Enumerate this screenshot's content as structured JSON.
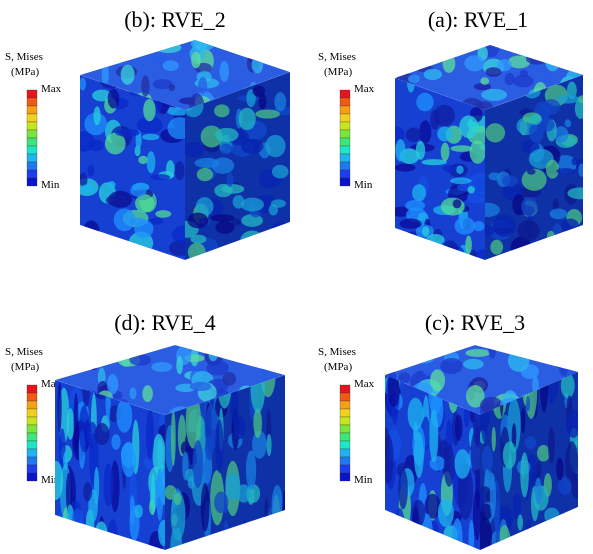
{
  "panels": [
    {
      "title": "(b): RVE_2",
      "legend": {
        "title": "S, Mises",
        "unit": "(MPa)",
        "max": "Max",
        "min": "Min"
      }
    },
    {
      "title": "(a): RVE_1",
      "legend": {
        "title": "S, Mises",
        "unit": "(MPa)",
        "max": "Max",
        "min": "Min"
      }
    },
    {
      "title": "(d): RVE_4",
      "legend": {
        "title": "S, Mises",
        "unit": "(MPa)",
        "max": "Max",
        "min": "Min"
      }
    },
    {
      "title": "(c): RVE_3",
      "legend": {
        "title": "S, Mises",
        "unit": "(MPa)",
        "max": "Max",
        "min": "Min"
      }
    }
  ]
}
